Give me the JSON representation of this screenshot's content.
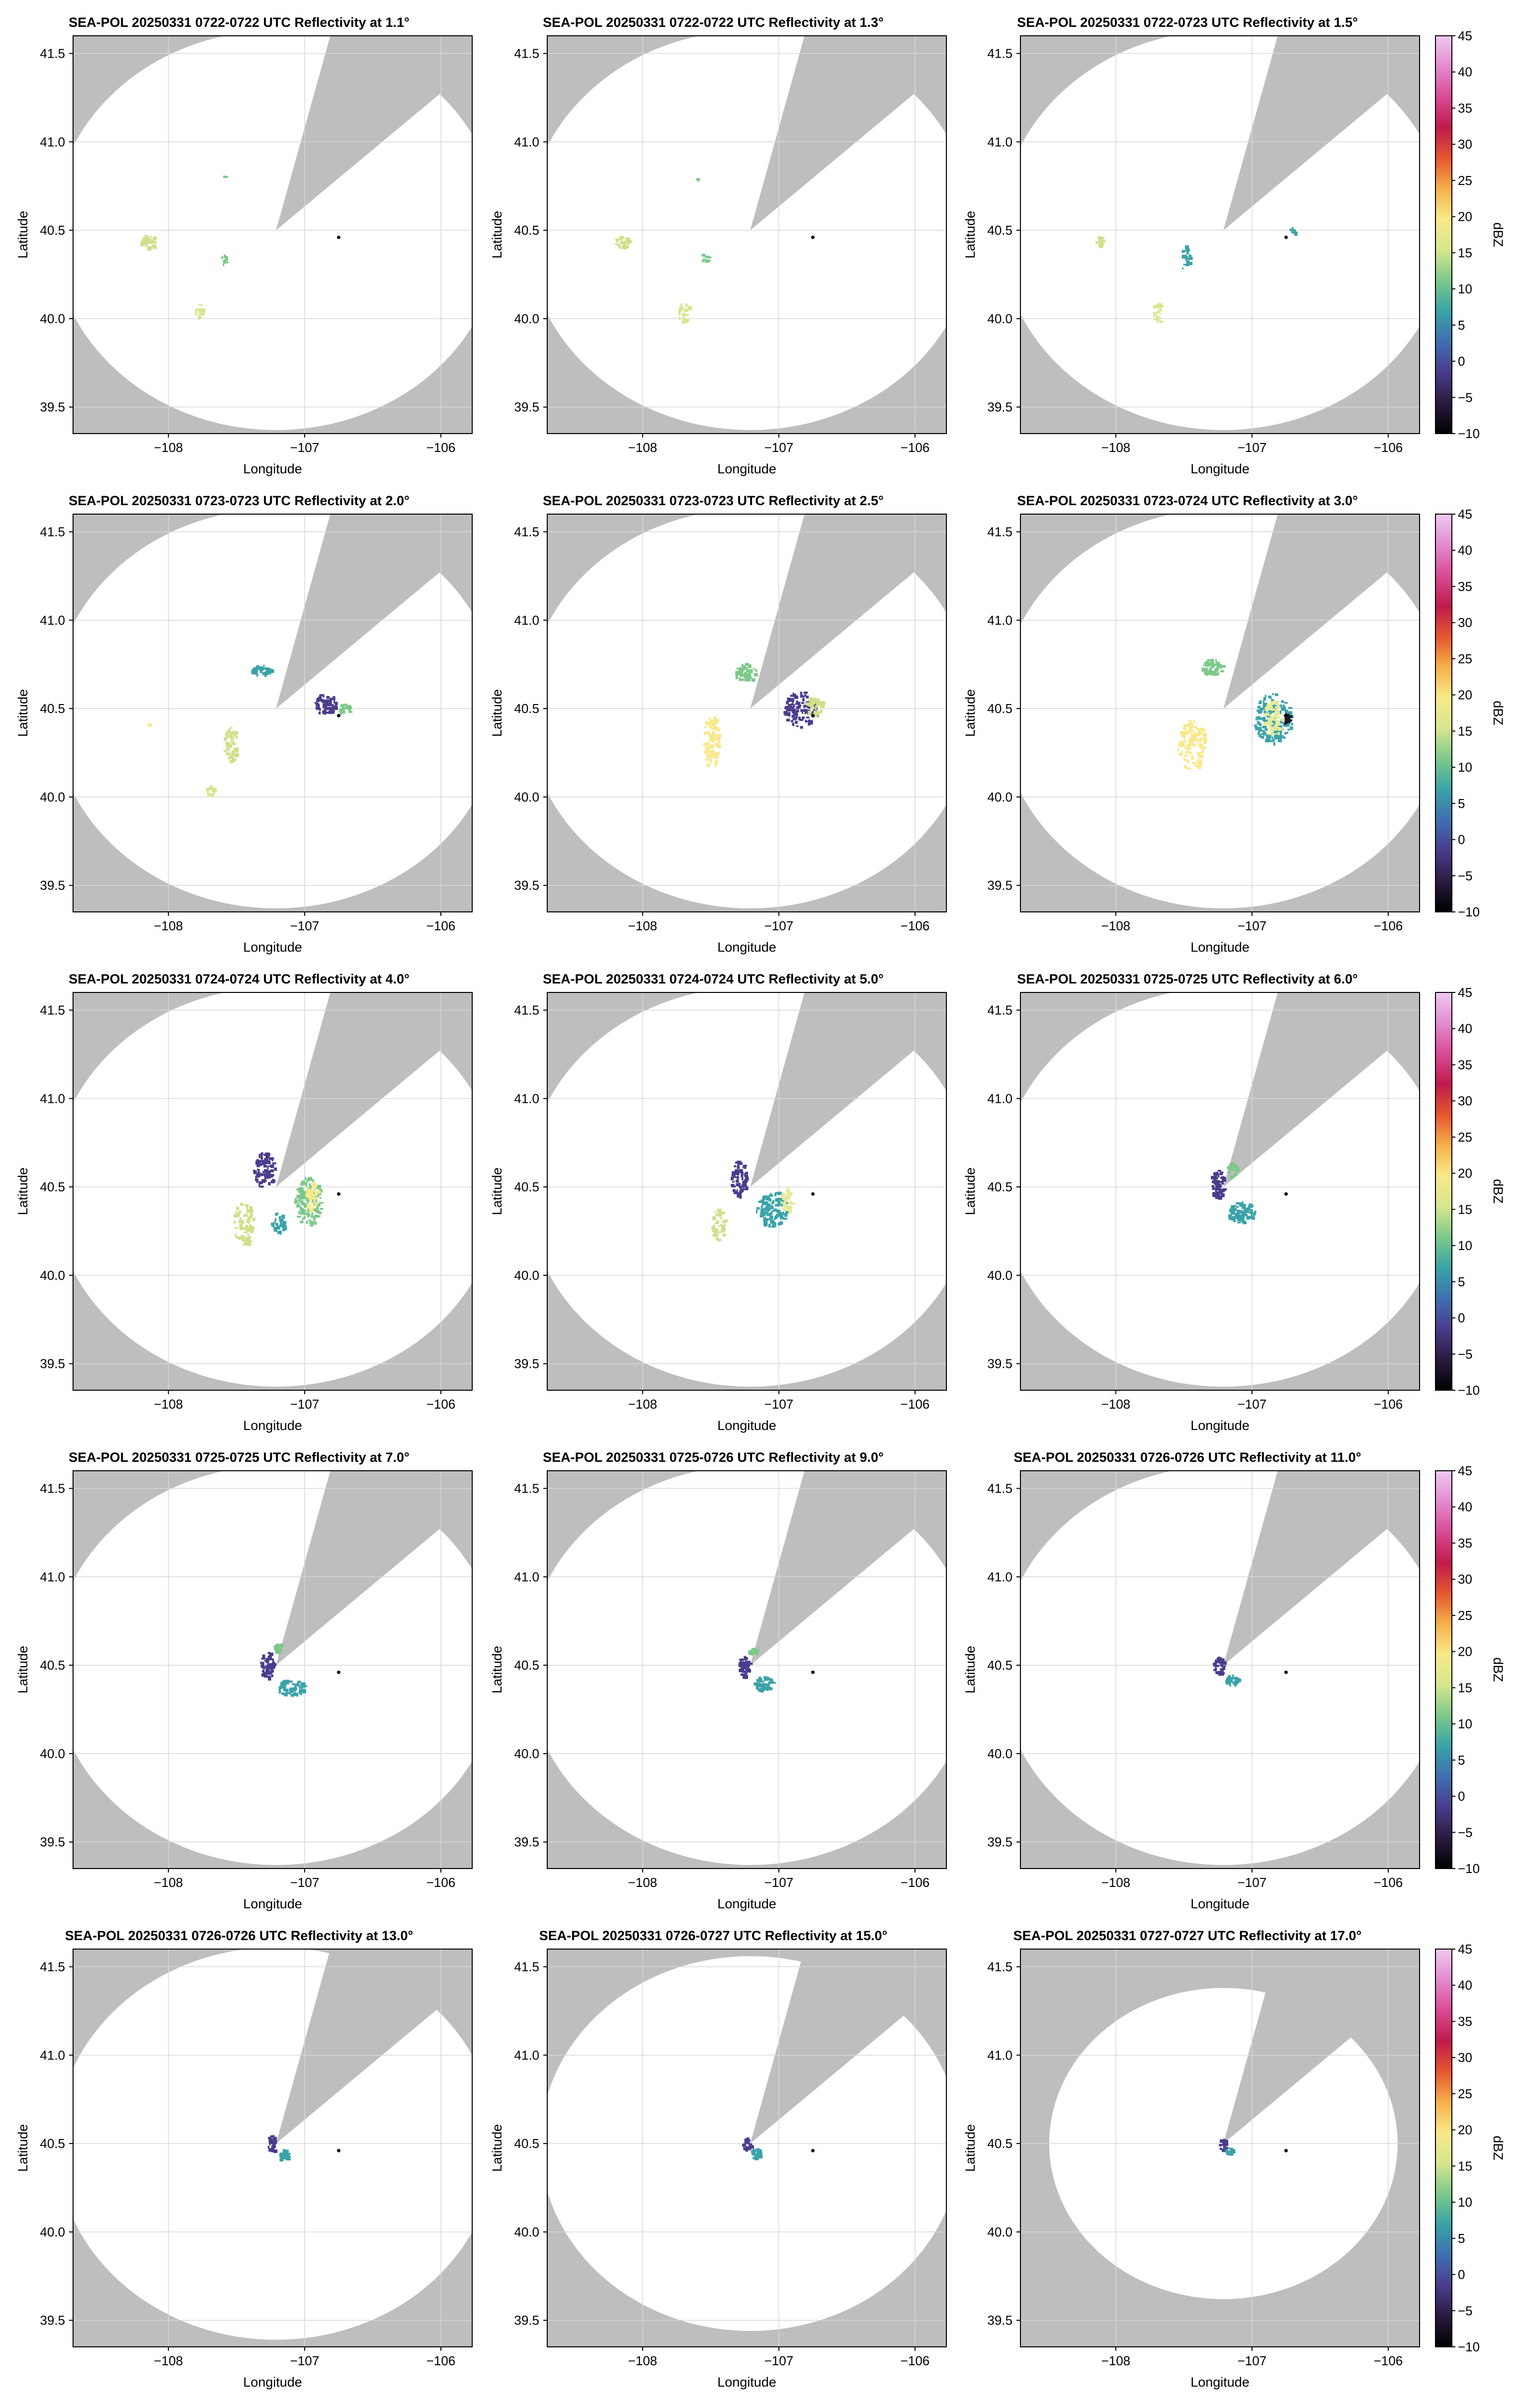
{
  "colors": {
    "background_gray": "#bebebe",
    "coverage_white": "#ffffff",
    "grid": "#d8d8d8",
    "radar_marker": "#000000"
  },
  "axes": {
    "xlabel": "Longitude",
    "ylabel": "Latitude",
    "xlim": [
      -108.7,
      -105.77
    ],
    "ylim": [
      39.35,
      41.6
    ],
    "xticks": [
      -108,
      -107,
      -106
    ],
    "xtick_labels": [
      "−108",
      "−107",
      "−106"
    ],
    "yticks": [
      39.5,
      40.0,
      40.5,
      41.0,
      41.5
    ],
    "ytick_labels": [
      "39.5",
      "40.0",
      "40.5",
      "41.0",
      "41.5"
    ],
    "grid": true
  },
  "colorbar": {
    "label": "dBZ",
    "range": [
      -10,
      45
    ],
    "ticks": [
      -10,
      -5,
      0,
      5,
      10,
      15,
      20,
      25,
      30,
      35,
      40,
      45
    ],
    "tick_labels": [
      "−10",
      "−5",
      "0",
      "5",
      "10",
      "15",
      "20",
      "25",
      "30",
      "35",
      "40",
      "45"
    ],
    "colormap_stops": [
      "#000000",
      "#2a1a40",
      "#4a3c8c",
      "#3f6fb0",
      "#3aa3a8",
      "#7cc98a",
      "#d7e68f",
      "#f8e98a",
      "#f6b04c",
      "#e5562f",
      "#c01a4c",
      "#d94b95",
      "#e38bd0",
      "#f0c9f0"
    ]
  },
  "radar_location": {
    "lon": -107.21,
    "lat": 40.5
  },
  "reference_point": {
    "lon": -106.75,
    "lat": 40.46
  },
  "chart_data": [
    {
      "type": "heatmap",
      "title": "SEA-POL 20250331 0722-0722 UTC Reflectivity at 1.1°",
      "elevation_deg": 1.1,
      "range_deg_lat": 1.13
    },
    {
      "type": "heatmap",
      "title": "SEA-POL 20250331 0722-0722 UTC Reflectivity at 1.3°",
      "elevation_deg": 1.3,
      "range_deg_lat": 1.13
    },
    {
      "type": "heatmap",
      "title": "SEA-POL 20250331 0722-0723 UTC Reflectivity at 1.5°",
      "elevation_deg": 1.5,
      "range_deg_lat": 1.13
    },
    {
      "type": "heatmap",
      "title": "SEA-POL 20250331 0723-0723 UTC Reflectivity at 2.0°",
      "elevation_deg": 2.0,
      "range_deg_lat": 1.13
    },
    {
      "type": "heatmap",
      "title": "SEA-POL 20250331 0723-0723 UTC Reflectivity at 2.5°",
      "elevation_deg": 2.5,
      "range_deg_lat": 1.13
    },
    {
      "type": "heatmap",
      "title": "SEA-POL 20250331 0723-0724 UTC Reflectivity at 3.0°",
      "elevation_deg": 3.0,
      "range_deg_lat": 1.13
    },
    {
      "type": "heatmap",
      "title": "SEA-POL 20250331 0724-0724 UTC Reflectivity at 4.0°",
      "elevation_deg": 4.0,
      "range_deg_lat": 1.13
    },
    {
      "type": "heatmap",
      "title": "SEA-POL 20250331 0724-0724 UTC Reflectivity at 5.0°",
      "elevation_deg": 5.0,
      "range_deg_lat": 1.13
    },
    {
      "type": "heatmap",
      "title": "SEA-POL 20250331 0725-0725 UTC Reflectivity at 6.0°",
      "elevation_deg": 6.0,
      "range_deg_lat": 1.13
    },
    {
      "type": "heatmap",
      "title": "SEA-POL 20250331 0725-0725 UTC Reflectivity at 7.0°",
      "elevation_deg": 7.0,
      "range_deg_lat": 1.13
    },
    {
      "type": "heatmap",
      "title": "SEA-POL 20250331 0725-0726 UTC Reflectivity at 9.0°",
      "elevation_deg": 9.0,
      "range_deg_lat": 1.13
    },
    {
      "type": "heatmap",
      "title": "SEA-POL 20250331 0726-0726 UTC Reflectivity at 11.0°",
      "elevation_deg": 11.0,
      "range_deg_lat": 1.13
    },
    {
      "type": "heatmap",
      "title": "SEA-POL 20250331 0726-0726 UTC Reflectivity at 13.0°",
      "elevation_deg": 13.0,
      "range_deg_lat": 1.11
    },
    {
      "type": "heatmap",
      "title": "SEA-POL 20250331 0726-0727 UTC Reflectivity at 15.0°",
      "elevation_deg": 15.0,
      "range_deg_lat": 1.06
    },
    {
      "type": "heatmap",
      "title": "SEA-POL 20250331 0727-0727 UTC Reflectivity at 17.0°",
      "elevation_deg": 17.0,
      "range_deg_lat": 0.88
    }
  ]
}
